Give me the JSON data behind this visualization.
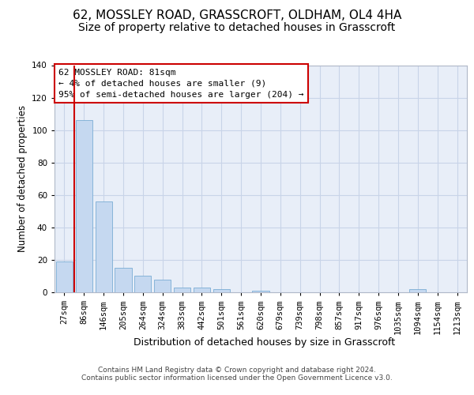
{
  "title1": "62, MOSSLEY ROAD, GRASSCROFT, OLDHAM, OL4 4HA",
  "title2": "Size of property relative to detached houses in Grasscroft",
  "xlabel": "Distribution of detached houses by size in Grasscroft",
  "ylabel": "Number of detached properties",
  "bar_values": [
    19,
    106,
    56,
    15,
    10,
    8,
    3,
    3,
    2,
    0,
    1,
    0,
    0,
    0,
    0,
    0,
    0,
    0,
    2,
    0,
    0
  ],
  "bar_labels": [
    "27sqm",
    "86sqm",
    "146sqm",
    "205sqm",
    "264sqm",
    "324sqm",
    "383sqm",
    "442sqm",
    "501sqm",
    "561sqm",
    "620sqm",
    "679sqm",
    "739sqm",
    "798sqm",
    "857sqm",
    "917sqm",
    "976sqm",
    "1035sqm",
    "1094sqm",
    "1154sqm",
    "1213sqm"
  ],
  "bar_color": "#c5d8f0",
  "bar_edge_color": "#7aadd4",
  "bar_width": 0.85,
  "ylim": [
    0,
    140
  ],
  "yticks": [
    0,
    20,
    40,
    60,
    80,
    100,
    120,
    140
  ],
  "vline_x": 0,
  "vline_color": "#cc0000",
  "annotation_text": "62 MOSSLEY ROAD: 81sqm\n← 4% of detached houses are smaller (9)\n95% of semi-detached houses are larger (204) →",
  "annotation_border_color": "#cc0000",
  "grid_color": "#c8d4e8",
  "background_color": "#e8eef8",
  "footer_text": "Contains HM Land Registry data © Crown copyright and database right 2024.\nContains public sector information licensed under the Open Government Licence v3.0.",
  "title1_fontsize": 11,
  "title2_fontsize": 10,
  "xlabel_fontsize": 9,
  "ylabel_fontsize": 8.5,
  "tick_fontsize": 7.5,
  "annotation_fontsize": 8,
  "footer_fontsize": 6.5
}
